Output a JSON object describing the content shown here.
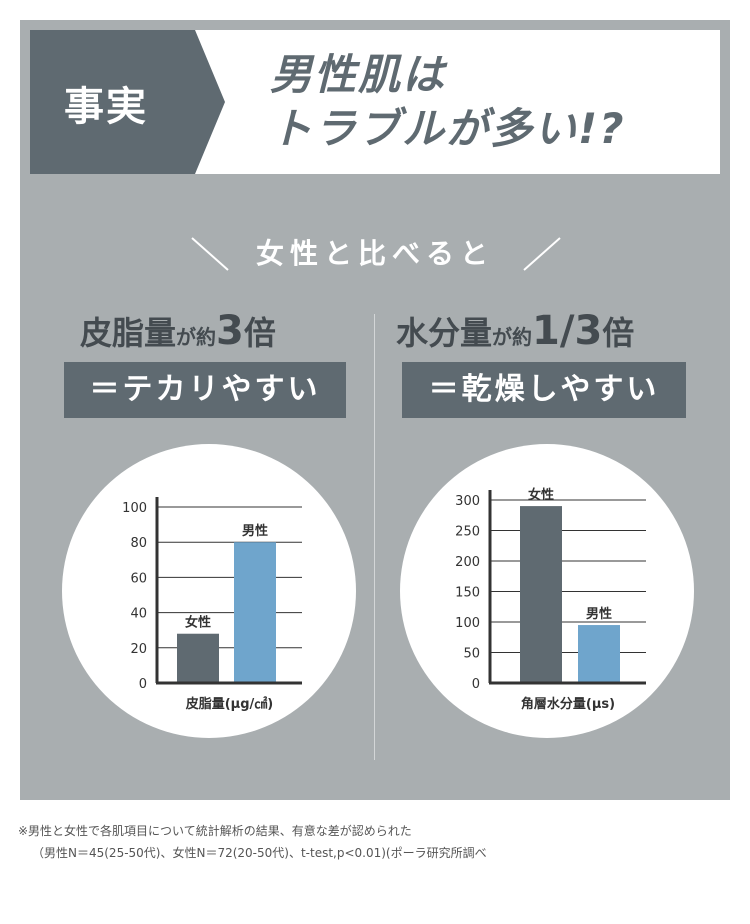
{
  "header": {
    "tag": "事実",
    "headline_line1": "男性肌は",
    "headline_line2": "トラブルが多い!?"
  },
  "subtitle": "女性と比べると",
  "left": {
    "title_prefix": "皮脂量",
    "title_mid": "が約",
    "title_num": "3",
    "title_suffix": "倍",
    "result": "＝テカリやすい"
  },
  "right": {
    "title_prefix": "水分量",
    "title_mid": "が約",
    "title_num": "1/3",
    "title_suffix": "倍",
    "result": "＝乾燥しやすい"
  },
  "colors": {
    "panel": "#a9aeb0",
    "dark": "#5f6a71",
    "female_bar": "#5f6a71",
    "male_bar": "#6fa5cc"
  },
  "chart_data": [
    {
      "type": "bar",
      "categories": [
        "女性",
        "男性"
      ],
      "values": [
        28,
        80
      ],
      "xlabel": "皮脂量(μg/㎠)",
      "yticks": [
        0,
        20,
        40,
        60,
        80,
        100
      ],
      "ylim": [
        0,
        100
      ],
      "grid": true
    },
    {
      "type": "bar",
      "categories": [
        "女性",
        "男性"
      ],
      "values": [
        290,
        95
      ],
      "xlabel": "角層水分量(μs)",
      "yticks": [
        0,
        50,
        100,
        150,
        200,
        250,
        300
      ],
      "ylim": [
        0,
        300
      ],
      "grid": true
    }
  ],
  "footnote": {
    "line1": "※男性と女性で各肌項目について統計解析の結果、有意な差が認められた",
    "line2": "（男性N＝45(25-50代)、女性N＝72(20-50代)、t-test,p<0.01)(ポーラ研究所調べ"
  }
}
